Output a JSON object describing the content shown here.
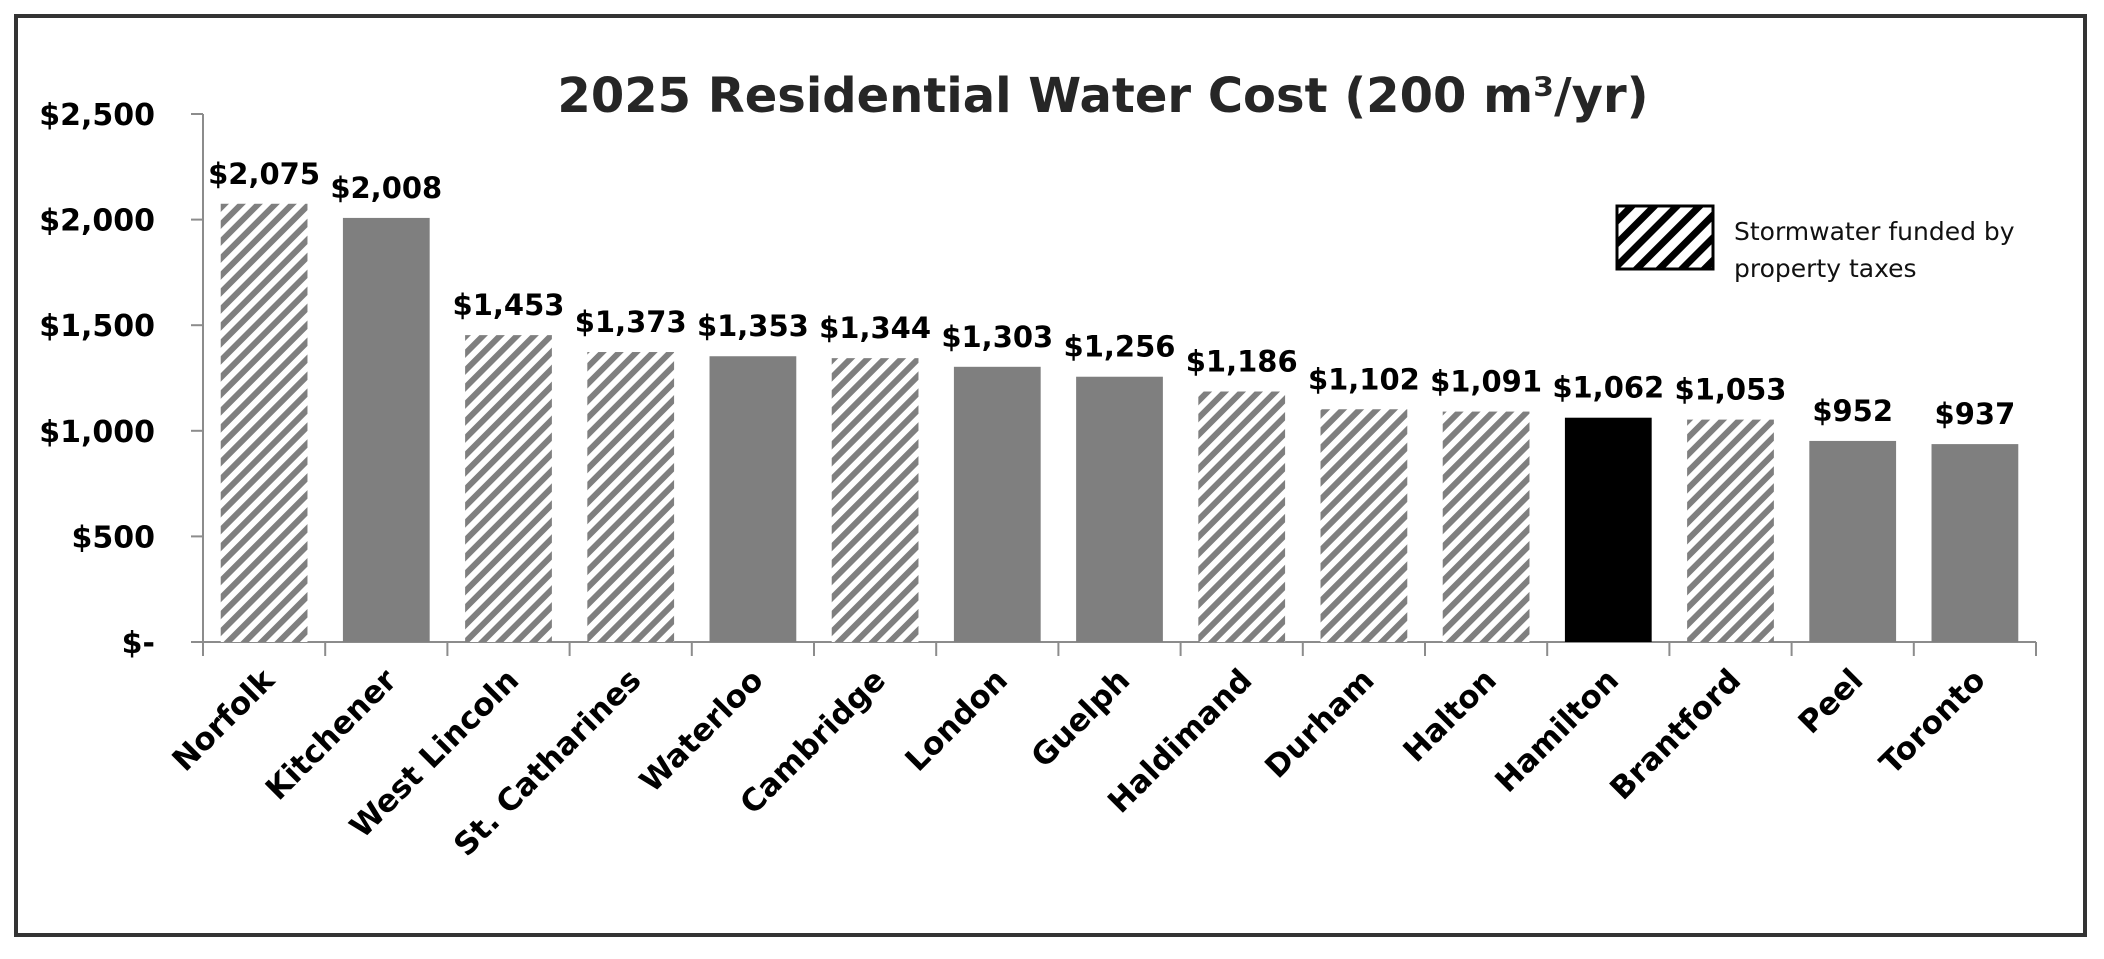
{
  "chart_data": {
    "type": "bar",
    "title": "2025 Residential Water Cost (200 m³/yr)",
    "xlabel": "",
    "ylabel": "",
    "ylim": [
      0,
      2500
    ],
    "yticks": [
      0,
      500,
      1000,
      1500,
      2000,
      2500
    ],
    "ytick_labels": [
      "$-",
      "$500",
      "$1,000",
      "$1,500",
      "$2,000",
      "$2,500"
    ],
    "grid": false,
    "legend_position": "top-right",
    "legend": [
      {
        "label": "Stormwater funded by property taxes",
        "pattern": "diagonal-hatch"
      }
    ],
    "categories": [
      "Norfolk",
      "Kitchener",
      "West Lincoln",
      "St. Catharines",
      "Waterloo",
      "Cambridge",
      "London",
      "Guelph",
      "Haldimand",
      "Durham",
      "Halton",
      "Hamilton",
      "Brantford",
      "Peel",
      "Toronto"
    ],
    "values": [
      2075,
      2008,
      1453,
      1373,
      1353,
      1344,
      1303,
      1256,
      1186,
      1102,
      1091,
      1062,
      1053,
      952,
      937
    ],
    "data_labels": [
      "$2,075",
      "$2,008",
      "$1,453",
      "$1,373",
      "$1,353",
      "$1,344",
      "$1,303",
      "$1,256",
      "$1,186",
      "$1,102",
      "$1,091",
      "$1,062",
      "$1,053",
      "$952",
      "$937"
    ],
    "stormwater_funded_by_property_taxes": [
      true,
      false,
      true,
      true,
      false,
      true,
      false,
      false,
      true,
      true,
      true,
      false,
      true,
      false,
      false
    ],
    "highlighted": "Hamilton",
    "colors": {
      "bar": "#7f7f7f",
      "hatch": "#7f7f7f",
      "highlight": "#000000",
      "legend_hatch": "#000000"
    }
  }
}
